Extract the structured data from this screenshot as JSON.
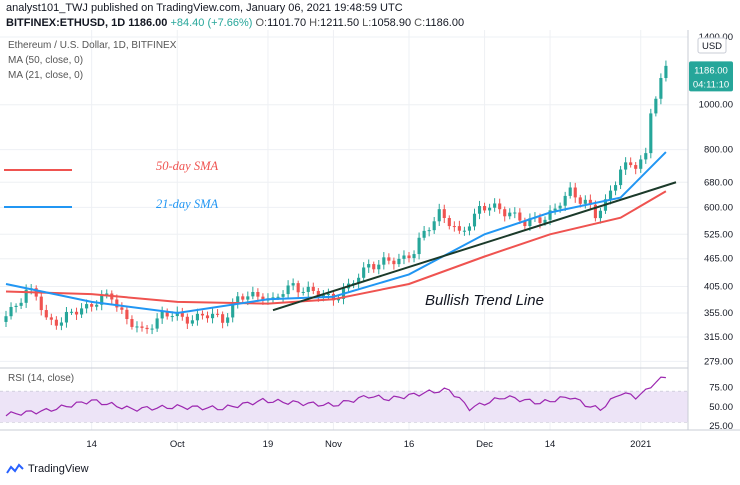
{
  "header": {
    "line1": "analyst101_TWJ published on TradingView.com, January 06, 2021 19:48:59 UTC",
    "symbol": "BITFINEX:ETHUSD, 1D",
    "price": "1186.00",
    "change": "+84.40 (+7.66%)",
    "o_label": "O:",
    "o_value": "1101.70",
    "h_label": "H:",
    "h_value": "1211.50",
    "l_label": "L:",
    "l_value": "1058.90",
    "c_label": "C:",
    "c_value": "1186.00"
  },
  "legend": {
    "title": "Ethereum / U.S. Dollar, 1D, BITFINEX",
    "ma50": "MA (50, close, 0)",
    "ma21": "MA (21, close, 0)",
    "rsi": "RSI (14, close)"
  },
  "annotations": {
    "sma50": "50-day SMA",
    "sma21": "21-day SMA",
    "trend": "Bullish Trend Line"
  },
  "price_axis": {
    "currency": "USD",
    "ticks": [
      "1400.00",
      "1000.00",
      "800.00",
      "680.00",
      "600.00",
      "525.00",
      "465.00",
      "405.00",
      "355.00",
      "315.00",
      "279.00"
    ],
    "last_price": "1186.00",
    "countdown": "04:11:10"
  },
  "rsi_axis": {
    "ticks": [
      "75.00",
      "50.00",
      "25.00"
    ]
  },
  "time_axis": {
    "ticks": [
      "14",
      "Oct",
      "19",
      "Nov",
      "16",
      "Dec",
      "14",
      "2021"
    ]
  },
  "footer": {
    "brand": "TradingView"
  },
  "colors": {
    "up": "#26a69a",
    "down": "#ef5350",
    "ma50": "#ef5350",
    "ma21": "#2196f3",
    "trend": "#1b3a2a",
    "rsi": "#9c27b0",
    "rsi_band": "#ede4f7",
    "price_tag": "#26a69a"
  },
  "chart_data": {
    "type": "candlestick",
    "scale": "log",
    "ylim": [
      270,
      1450
    ],
    "x_span": [
      "2020-08-28",
      "2021-01-08"
    ],
    "x_ticks": [
      {
        "label": "14",
        "date": "2020-09-14"
      },
      {
        "label": "Oct",
        "date": "2020-10-01"
      },
      {
        "label": "19",
        "date": "2020-10-19"
      },
      {
        "label": "Nov",
        "date": "2020-11-01"
      },
      {
        "label": "16",
        "date": "2020-11-16"
      },
      {
        "label": "Dec",
        "date": "2020-12-01"
      },
      {
        "label": "14",
        "date": "2020-12-14"
      },
      {
        "label": "2021",
        "date": "2021-01-01"
      }
    ],
    "close_anchors": [
      [
        "2020-08-28",
        350
      ],
      [
        "2020-09-01",
        395
      ],
      [
        "2020-09-03",
        385
      ],
      [
        "2020-09-05",
        345
      ],
      [
        "2020-09-08",
        340
      ],
      [
        "2020-09-12",
        365
      ],
      [
        "2020-09-18",
        385
      ],
      [
        "2020-09-21",
        345
      ],
      [
        "2020-09-24",
        320
      ],
      [
        "2020-09-28",
        355
      ],
      [
        "2020-10-02",
        345
      ],
      [
        "2020-10-06",
        350
      ],
      [
        "2020-10-10",
        345
      ],
      [
        "2020-10-13",
        380
      ],
      [
        "2020-10-18",
        390
      ],
      [
        "2020-10-20",
        375
      ],
      [
        "2020-10-24",
        410
      ],
      [
        "2020-10-28",
        390
      ],
      [
        "2020-11-01",
        385
      ],
      [
        "2020-11-04",
        400
      ],
      [
        "2020-11-08",
        455
      ],
      [
        "2020-11-10",
        450
      ],
      [
        "2020-11-14",
        465
      ],
      [
        "2020-11-17",
        480
      ],
      [
        "2020-11-22",
        590
      ],
      [
        "2020-11-26",
        520
      ],
      [
        "2020-11-30",
        600
      ],
      [
        "2020-12-03",
        595
      ],
      [
        "2020-12-06",
        590
      ],
      [
        "2020-12-09",
        550
      ],
      [
        "2020-12-12",
        570
      ],
      [
        "2020-12-15",
        590
      ],
      [
        "2020-12-18",
        650
      ],
      [
        "2020-12-21",
        620
      ],
      [
        "2020-12-23",
        570
      ],
      [
        "2020-12-25",
        615
      ],
      [
        "2020-12-28",
        730
      ],
      [
        "2020-12-31",
        735
      ],
      [
        "2021-01-02",
        780
      ],
      [
        "2021-01-03",
        980
      ],
      [
        "2021-01-04",
        1050
      ],
      [
        "2021-01-06",
        1186
      ]
    ],
    "series": [
      {
        "name": "MA (50, close, 0)",
        "values": [
          [
            "2020-08-28",
            395
          ],
          [
            "2020-09-14",
            390
          ],
          [
            "2020-10-01",
            375
          ],
          [
            "2020-10-19",
            372
          ],
          [
            "2020-11-01",
            380
          ],
          [
            "2020-11-16",
            410
          ],
          [
            "2020-12-01",
            470
          ],
          [
            "2020-12-14",
            525
          ],
          [
            "2020-12-28",
            570
          ],
          [
            "2021-01-06",
            650
          ]
        ]
      },
      {
        "name": "MA (21, close, 0)",
        "values": [
          [
            "2020-08-28",
            410
          ],
          [
            "2020-09-14",
            375
          ],
          [
            "2020-10-01",
            355
          ],
          [
            "2020-10-19",
            380
          ],
          [
            "2020-11-01",
            385
          ],
          [
            "2020-11-16",
            430
          ],
          [
            "2020-12-01",
            525
          ],
          [
            "2020-12-14",
            585
          ],
          [
            "2020-12-28",
            630
          ],
          [
            "2021-01-06",
            790
          ]
        ]
      }
    ],
    "trend_line": [
      [
        "2020-10-20",
        360
      ],
      [
        "2021-01-08",
        680
      ]
    ],
    "rsi": {
      "name": "RSI (14, close)",
      "ylim": [
        20,
        95
      ],
      "bands": [
        30,
        70
      ],
      "values": [
        [
          "2020-08-28",
          40
        ],
        [
          "2020-09-05",
          45
        ],
        [
          "2020-09-14",
          58
        ],
        [
          "2020-09-22",
          47
        ],
        [
          "2020-10-01",
          50
        ],
        [
          "2020-10-10",
          48
        ],
        [
          "2020-10-18",
          58
        ],
        [
          "2020-10-25",
          55
        ],
        [
          "2020-11-01",
          52
        ],
        [
          "2020-11-08",
          64
        ],
        [
          "2020-11-12",
          60
        ],
        [
          "2020-11-20",
          69
        ],
        [
          "2020-11-24",
          72
        ],
        [
          "2020-11-28",
          48
        ],
        [
          "2020-12-05",
          63
        ],
        [
          "2020-12-12",
          55
        ],
        [
          "2020-12-18",
          63
        ],
        [
          "2020-12-22",
          50
        ],
        [
          "2020-12-24",
          47
        ],
        [
          "2020-12-28",
          68
        ],
        [
          "2020-12-31",
          63
        ],
        [
          "2021-01-02",
          70
        ],
        [
          "2021-01-04",
          83
        ],
        [
          "2021-01-06",
          88
        ]
      ]
    }
  }
}
